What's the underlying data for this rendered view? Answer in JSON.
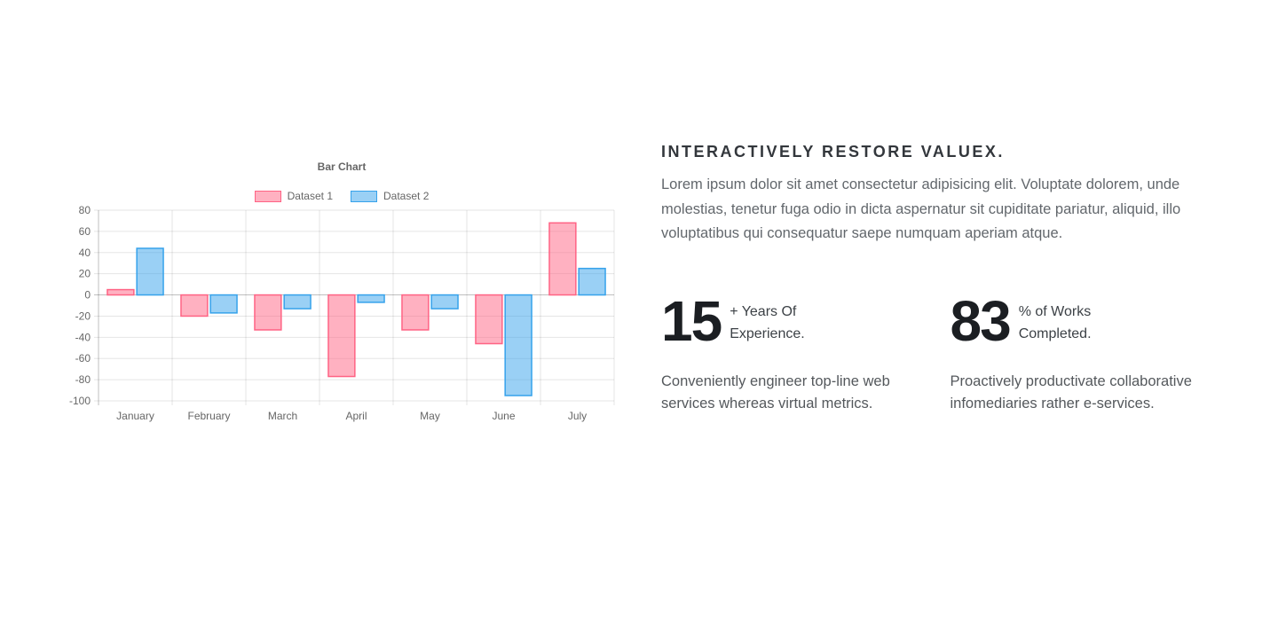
{
  "chart_data": {
    "type": "bar",
    "title": "Bar Chart",
    "legend_position": "top",
    "grid": true,
    "categories": [
      "January",
      "February",
      "March",
      "April",
      "May",
      "June",
      "July"
    ],
    "series": [
      {
        "name": "Dataset 1",
        "fill": "rgba(255, 99, 132, 0.5)",
        "border": "#ff6384",
        "values": [
          5,
          -20,
          -33,
          -77,
          -33,
          -46,
          68
        ]
      },
      {
        "name": "Dataset 2",
        "fill": "rgba(54, 162, 235, 0.5)",
        "border": "#36a2eb",
        "values": [
          44,
          -17,
          -13,
          -7,
          -13,
          -95,
          25
        ]
      }
    ],
    "axis": {
      "y_min": -100,
      "y_max": 80,
      "y_step": 20,
      "y_ticks": [
        80,
        60,
        40,
        20,
        0,
        -20,
        -40,
        -60,
        -80,
        -100
      ]
    },
    "grid_colors": {
      "line": "rgba(0,0,0,0.1)",
      "zero_line": "rgba(0,0,0,0.25)"
    }
  },
  "content": {
    "heading": "INTERACTIVELY RESTORE VALUEX.",
    "paragraph": "Lorem ipsum dolor sit amet consectetur adipisicing elit. Voluptate dolorem, unde molestias, tenetur fuga odio in dicta aspernatur sit cupiditate pariatur, aliquid, illo voluptatibus qui consequatur saepe numquam aperiam atque.",
    "stats": [
      {
        "value": "15",
        "label_line1": "+ Years Of",
        "label_line2": "Experience.",
        "description": "Conveniently engineer top-line web services whereas virtual metrics."
      },
      {
        "value": "83",
        "label_line1": "% of Works",
        "label_line2": "Completed.",
        "description": "Proactively productivate collaborative infomediaries rather e-services."
      }
    ]
  }
}
